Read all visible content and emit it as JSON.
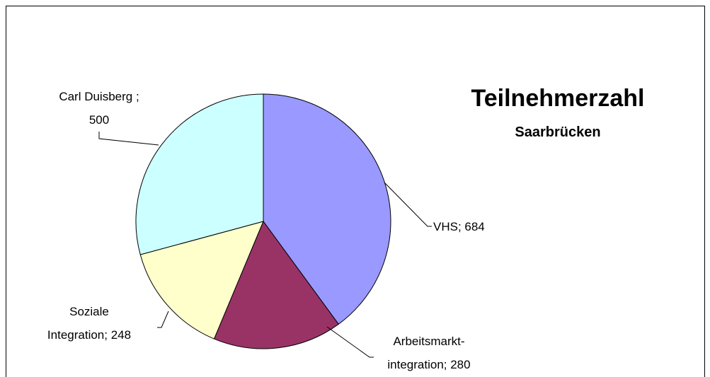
{
  "chart_data": {
    "type": "pie",
    "title": "Teilnehmerzahl",
    "subtitle": "Saarbrücken",
    "values": [
      684,
      280,
      248,
      500
    ],
    "value_labels": [
      "VHS; 684",
      "Arbeitsmarkt-\nintegration; 280",
      "Soziale\nIntegration; 248",
      "Carl Duisberg ;\n500"
    ],
    "colors": [
      "#9999ff",
      "#993366",
      "#ffffcc",
      "#ccffff"
    ]
  }
}
